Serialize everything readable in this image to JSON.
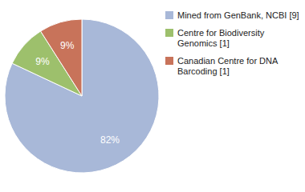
{
  "chart_data": {
    "type": "pie",
    "categories": [
      "Mined from GenBank, NCBI [9]",
      "Centre for Biodiversity\nGenomics [1]",
      "Canadian Centre for DNA\nBarcoding [1]"
    ],
    "values": [
      82,
      9,
      9
    ],
    "value_labels": [
      "82%",
      "9%",
      "9%"
    ],
    "colors": [
      "#a8b8d8",
      "#9dc06c",
      "#c8735a"
    ],
    "data_labels": true,
    "legend": "right"
  }
}
